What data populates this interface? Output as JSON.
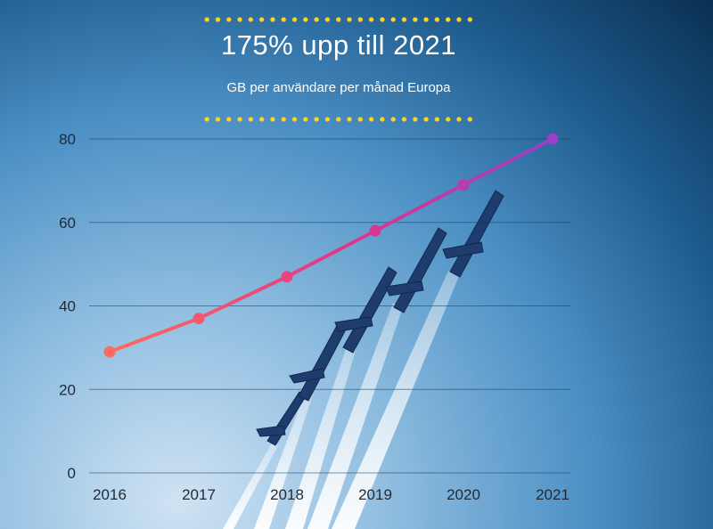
{
  "chart_data": {
    "type": "line",
    "title": "175% upp till 2021",
    "subtitle": "GB per användare per månad Europa",
    "x": [
      "2016",
      "2017",
      "2018",
      "2019",
      "2020",
      "2021"
    ],
    "series": [
      {
        "values": [
          29,
          37,
          47,
          58,
          69,
          80
        ]
      }
    ],
    "ylim": [
      0,
      80
    ],
    "yticks": [
      "0",
      "20",
      "40",
      "60",
      "80"
    ],
    "grid": true,
    "colors": {
      "start": "#ff6b5e",
      "mid": "#e0358a",
      "end": "#9a3fc8",
      "title": "#ffffff",
      "dots": "#ffd21f"
    }
  }
}
